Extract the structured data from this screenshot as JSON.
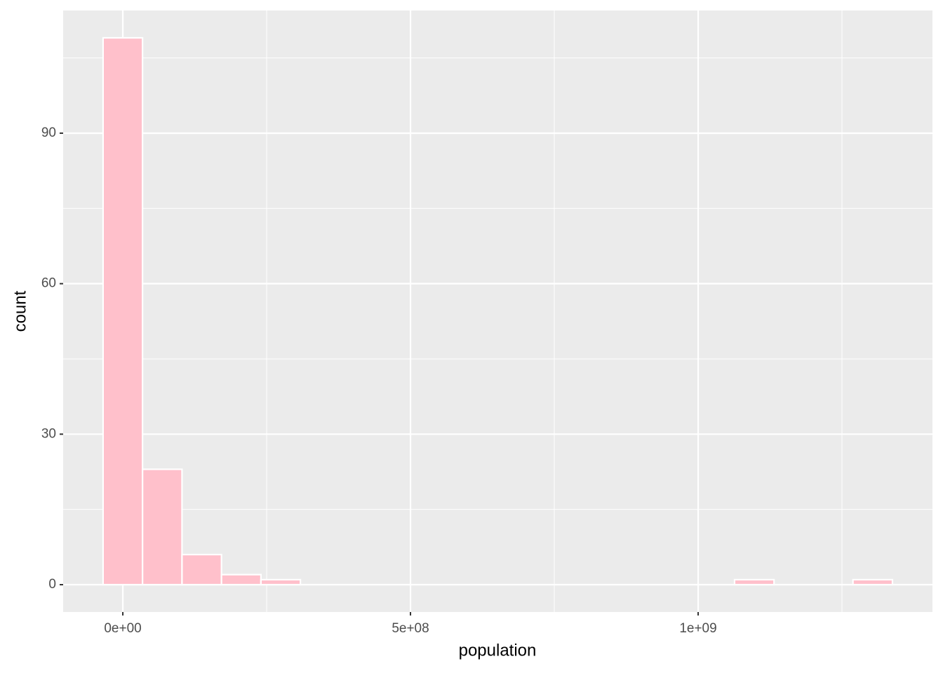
{
  "chart_data": {
    "type": "histogram",
    "x_label": "population",
    "y_label": "count",
    "bins": [
      -34300000,
      34300000,
      102900000,
      171500000,
      240100000,
      308700000,
      377300000,
      445900000,
      514500000,
      583100000,
      651700000,
      720300000,
      788900000,
      857500000,
      926100000,
      994700000,
      1063300000,
      1131900000,
      1200500000,
      1269100000,
      1337700000
    ],
    "counts": [
      109,
      23,
      6,
      2,
      1,
      0,
      0,
      0,
      0,
      0,
      0,
      0,
      0,
      0,
      0,
      0,
      1,
      0,
      0,
      1
    ],
    "color": "#ffc0cb",
    "xlim": [
      -103700000,
      1407300000
    ],
    "ylim": [
      -5.45,
      114.45
    ],
    "xticks": [
      {
        "value": 0,
        "label": "0e+00"
      },
      {
        "value": 500000000,
        "label": "5e+08"
      },
      {
        "value": 1000000000,
        "label": "1e+09"
      }
    ],
    "yticks": [
      0,
      30,
      60,
      90
    ],
    "grid": true
  }
}
